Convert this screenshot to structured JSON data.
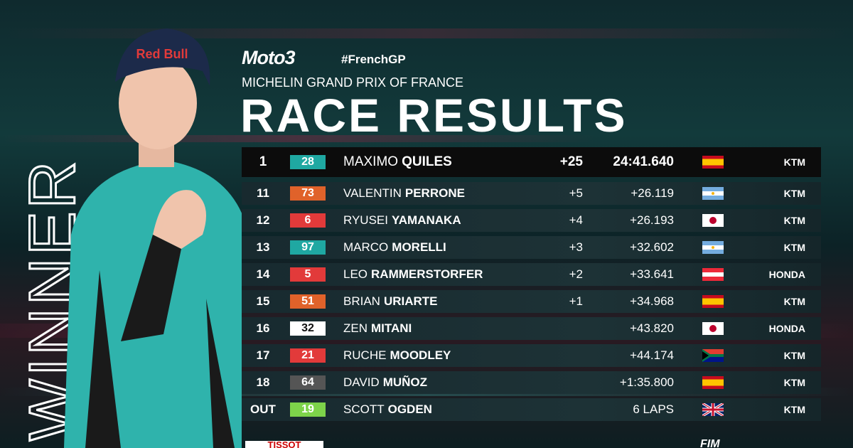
{
  "header": {
    "logo": "Moto3",
    "hashtag": "#FrenchGP",
    "subtitle": "MICHELIN GRAND PRIX OF FRANCE",
    "title": "RACE RESULTS"
  },
  "side_text": "WINNER",
  "table": {
    "rows": [
      {
        "pos": "1",
        "number": "28",
        "badge_color": "#1fa8a2",
        "first": "MAXIMO",
        "last": "QUILES",
        "points": "+25",
        "time": "24:41.640",
        "flag": "es",
        "maker": "KTM"
      },
      {
        "pos": "11",
        "number": "73",
        "badge_color": "#e0622a",
        "first": "VALENTIN",
        "last": "PERRONE",
        "points": "+5",
        "time": "+26.119",
        "flag": "ar",
        "maker": "KTM"
      },
      {
        "pos": "12",
        "number": "6",
        "badge_color": "#e23a3a",
        "first": "RYUSEI",
        "last": "YAMANAKA",
        "points": "+4",
        "time": "+26.193",
        "flag": "jp",
        "maker": "KTM"
      },
      {
        "pos": "13",
        "number": "97",
        "badge_color": "#1fa8a2",
        "first": "MARCO",
        "last": "MORELLI",
        "points": "+3",
        "time": "+32.602",
        "flag": "ar",
        "maker": "KTM"
      },
      {
        "pos": "14",
        "number": "5",
        "badge_color": "#e23a3a",
        "first": "LEO",
        "last": "RAMMERSTORFER",
        "points": "+2",
        "time": "+33.641",
        "flag": "at",
        "maker": "HONDA"
      },
      {
        "pos": "15",
        "number": "51",
        "badge_color": "#e0622a",
        "first": "BRIAN",
        "last": "URIARTE",
        "points": "+1",
        "time": "+34.968",
        "flag": "es",
        "maker": "KTM"
      },
      {
        "pos": "16",
        "number": "32",
        "badge_color": "#ffffff",
        "first": "ZEN",
        "last": "MITANI",
        "time": "+43.820",
        "flag": "jp",
        "maker": "HONDA"
      },
      {
        "pos": "17",
        "number": "21",
        "badge_color": "#e23a3a",
        "first": "RUCHE",
        "last": "MOODLEY",
        "time": "+44.174",
        "flag": "za",
        "maker": "KTM"
      },
      {
        "pos": "18",
        "number": "64",
        "badge_color": "#555555",
        "first": "DAVID",
        "last": "MUÑOZ",
        "time": "+1:35.800",
        "flag": "es",
        "maker": "KTM"
      },
      {
        "pos": "OUT",
        "number": "19",
        "badge_color": "#7dd34a",
        "first": "SCOTT",
        "last": "OGDEN",
        "time": "6 LAPS",
        "flag": "gb",
        "maker": "KTM"
      }
    ]
  },
  "footer": {
    "sponsor": "TISSOT",
    "fim": "FIM"
  }
}
